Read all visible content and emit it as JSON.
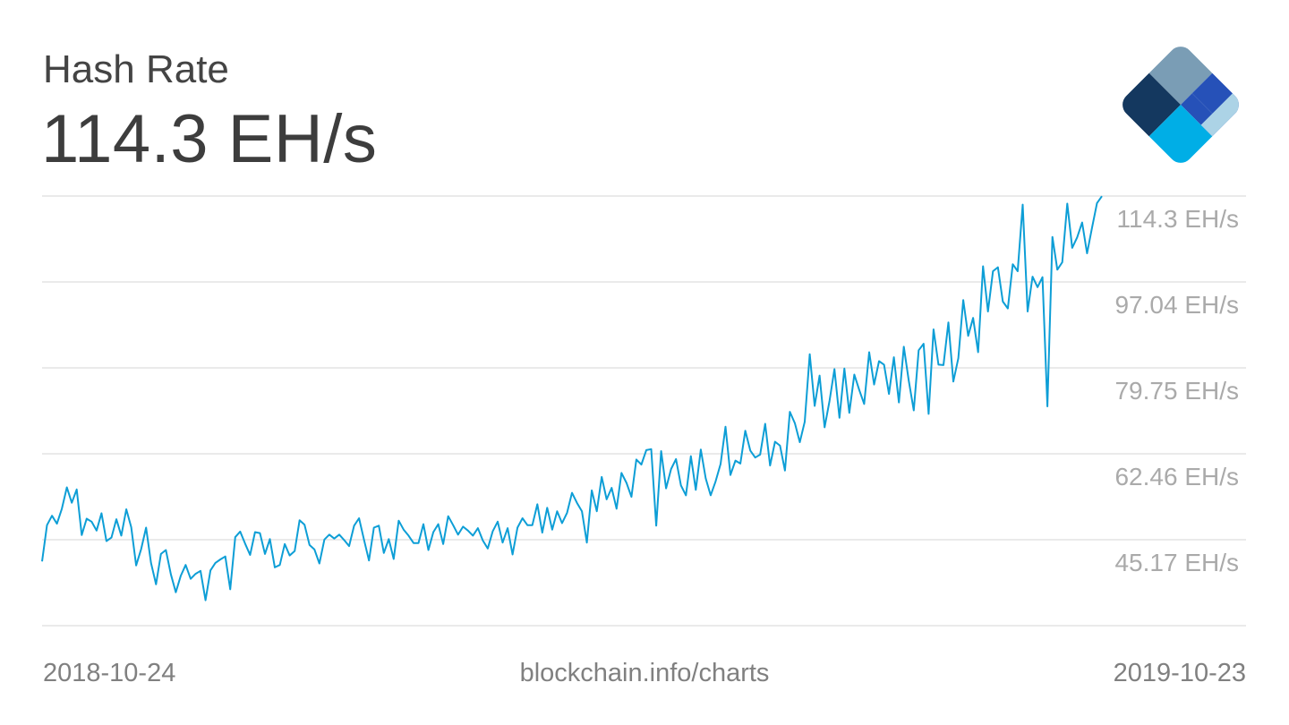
{
  "header": {
    "title": "Hash Rate",
    "current_value": "114.3 EH/s"
  },
  "logo": {
    "name": "blockchain-logo",
    "colors": [
      "#7a9db5",
      "#14385f",
      "#2651b8",
      "#00aee6",
      "#acd3e6"
    ]
  },
  "footer": {
    "start_date": "2018-10-24",
    "source": "blockchain.info/charts",
    "end_date": "2019-10-23"
  },
  "colors": {
    "line": "#0d9ed6",
    "grid": "#dddddd",
    "axis_label": "#aaaaaa",
    "title": "#444444"
  },
  "chart_data": {
    "type": "line",
    "title": "Hash Rate",
    "xlabel": "",
    "ylabel": "EH/s",
    "x_start": "2018-10-24",
    "x_end": "2019-10-23",
    "y_ticks": [
      "114.3 EH/s",
      "97.04 EH/s",
      "79.75 EH/s",
      "62.46 EH/s",
      "45.17 EH/s"
    ],
    "y_tick_values": [
      114.33,
      97.04,
      79.75,
      62.46,
      45.17
    ],
    "ylim": [
      27.88,
      114.33
    ],
    "grid": true,
    "legend": "none",
    "series": [
      {
        "name": "Hash Rate",
        "values": [
          40.8,
          48.1,
          50.0,
          48.4,
          51.4,
          55.7,
          52.6,
          55.3,
          46.1,
          49.4,
          48.8,
          47.0,
          50.5,
          44.9,
          45.6,
          49.3,
          46.0,
          51.3,
          47.7,
          40.0,
          43.3,
          47.6,
          40.5,
          36.2,
          42.3,
          43.1,
          38.2,
          34.6,
          37.9,
          40.1,
          37.3,
          38.3,
          38.9,
          33.0,
          39.0,
          40.5,
          41.2,
          41.8,
          35.2,
          45.7,
          46.8,
          44.4,
          42.1,
          46.7,
          46.5,
          42.3,
          45.3,
          39.6,
          40.1,
          44.3,
          42.0,
          42.9,
          49.1,
          48.2,
          44.1,
          43.2,
          40.4,
          45.2,
          46.2,
          45.4,
          46.2,
          45.1,
          43.9,
          48.0,
          49.5,
          45.2,
          41.0,
          47.6,
          48.0,
          42.5,
          45.3,
          41.3,
          49.0,
          47.2,
          46.0,
          44.5,
          44.5,
          48.3,
          43.1,
          46.7,
          48.3,
          44.3,
          49.9,
          48.1,
          46.2,
          47.8,
          47.0,
          46.0,
          47.5,
          45.0,
          43.4,
          46.9,
          48.8,
          44.6,
          47.5,
          42.2,
          47.6,
          49.5,
          48.1,
          48.1,
          52.3,
          46.6,
          51.6,
          47.2,
          50.9,
          48.5,
          50.6,
          54.6,
          52.6,
          50.9,
          44.6,
          55.1,
          50.9,
          57.8,
          53.3,
          55.6,
          51.4,
          58.6,
          56.6,
          53.8,
          61.3,
          60.3,
          63.2,
          63.4,
          48.0,
          63.0,
          55.5,
          59.4,
          61.4,
          56.1,
          54.1,
          62.0,
          55.2,
          63.3,
          57.5,
          54.1,
          56.9,
          60.4,
          67.9,
          58.2,
          61.1,
          60.5,
          67.1,
          63.1,
          61.7,
          62.3,
          68.5,
          60.1,
          64.9,
          64.1,
          59.1,
          70.9,
          68.6,
          64.8,
          68.9,
          82.5,
          72.1,
          78.2,
          67.8,
          73.1,
          79.5,
          69.7,
          79.6,
          70.7,
          78.4,
          75.3,
          72.5,
          82.9,
          76.4,
          81.1,
          80.4,
          74.5,
          81.9,
          72.8,
          84.0,
          77.2,
          71.2,
          83.3,
          84.6,
          70.5,
          87.5,
          80.4,
          80.3,
          88.9,
          77.0,
          81.7,
          93.4,
          86.2,
          89.8,
          82.9,
          100.2,
          91.1,
          99.2,
          100.0,
          93.1,
          91.7,
          100.6,
          99.2,
          112.6,
          91.1,
          98.1,
          96.0,
          98.0,
          72.0,
          106.1,
          99.5,
          101.0,
          112.8,
          103.9,
          106.0,
          109.0,
          102.8,
          107.9,
          112.9,
          114.3
        ]
      }
    ]
  }
}
